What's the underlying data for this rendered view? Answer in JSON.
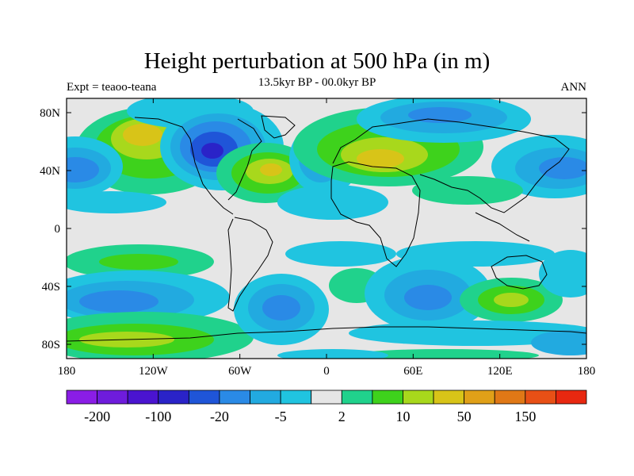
{
  "title": "Height perturbation at 500 hPa (in m)",
  "subtitle": "13.5kyr BP - 00.0kyr BP",
  "left_label": "Expt = teaoo-teana",
  "right_label": "ANN",
  "lat_ticks": [
    "80N",
    "40N",
    "0",
    "40S",
    "80S"
  ],
  "lon_ticks": [
    "180",
    "120W",
    "60W",
    "0",
    "60E",
    "120E",
    "180"
  ],
  "colorbar": {
    "colors": [
      "#8a1de6",
      "#6e1cdc",
      "#4a14d0",
      "#2a23c8",
      "#1f55d8",
      "#2a8ae6",
      "#22aae0",
      "#20c4e0",
      "#e6e6e6",
      "#20d28c",
      "#3ed21c",
      "#a8d81c",
      "#d8c418",
      "#e0a018",
      "#e07816",
      "#e85016",
      "#e82810"
    ],
    "labels": [
      "-200",
      "-100",
      "-20",
      "-5",
      "2",
      "10",
      "50",
      "150"
    ]
  },
  "map_fields": {
    "positive": [
      "#20d28c",
      "#3ed21c",
      "#a8d81c",
      "#d8c418",
      "#e0a018"
    ],
    "negative": [
      "#20c4e0",
      "#22aae0",
      "#2a8ae6",
      "#1f55d8",
      "#2a23c8"
    ],
    "neutral": "#e6e6e6"
  }
}
